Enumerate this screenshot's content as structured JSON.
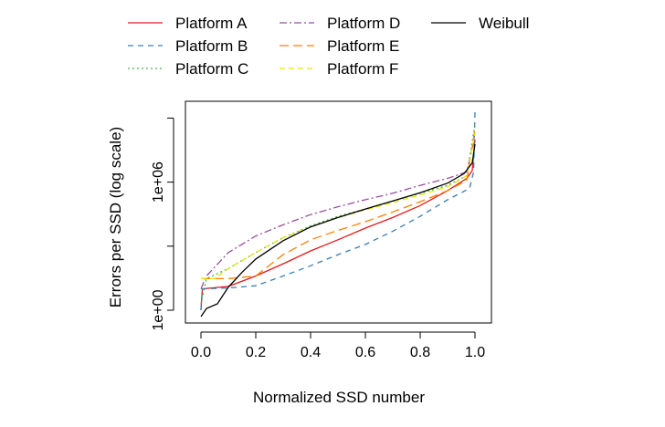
{
  "chart_data": {
    "type": "line",
    "title": "",
    "xlabel": "Normalized SSD number",
    "ylabel": "Errors per SSD (log scale)",
    "x_scale": "linear",
    "y_scale": "log10",
    "xlim": [
      0,
      1
    ],
    "ylim": [
      1,
      1000000000.0
    ],
    "xticks": [
      0.0,
      0.2,
      0.4,
      0.6,
      0.8,
      1.0
    ],
    "xtick_labels": [
      "0.0",
      "0.2",
      "0.4",
      "0.6",
      "0.8",
      "1.0"
    ],
    "yticks": [
      1,
      1000,
      1000000,
      1000000000
    ],
    "ytick_labels": [
      "1e+00",
      "",
      "1e+06",
      ""
    ],
    "grid": false,
    "legend_position": "top",
    "series": [
      {
        "name": "Platform A",
        "color": "#e41a1c",
        "dash": "solid",
        "points": [
          [
            0.0,
            1
          ],
          [
            0.005,
            10
          ],
          [
            0.1,
            13
          ],
          [
            0.2,
            40
          ],
          [
            0.3,
            150
          ],
          [
            0.4,
            600
          ],
          [
            0.5,
            2000
          ],
          [
            0.6,
            7000
          ],
          [
            0.7,
            22000
          ],
          [
            0.8,
            80000
          ],
          [
            0.9,
            400000
          ],
          [
            0.97,
            1500000
          ],
          [
            0.99,
            3500000
          ],
          [
            1.0,
            100000000.0
          ]
        ]
      },
      {
        "name": "Platform B",
        "color": "#377eb8",
        "dash": "6,5",
        "points": [
          [
            0.0,
            1
          ],
          [
            0.005,
            10
          ],
          [
            0.1,
            11
          ],
          [
            0.2,
            14
          ],
          [
            0.3,
            40
          ],
          [
            0.4,
            120
          ],
          [
            0.5,
            400
          ],
          [
            0.6,
            1200
          ],
          [
            0.7,
            5000
          ],
          [
            0.8,
            25000
          ],
          [
            0.9,
            150000
          ],
          [
            0.98,
            500000
          ],
          [
            0.995,
            3000000
          ],
          [
            1.0,
            2000000000.0
          ]
        ]
      },
      {
        "name": "Platform C",
        "color": "#4daf4a",
        "dash": "2,3",
        "points": [
          [
            0.0,
            2
          ],
          [
            0.02,
            30
          ],
          [
            0.1,
            90
          ],
          [
            0.2,
            500
          ],
          [
            0.3,
            2500
          ],
          [
            0.4,
            9000
          ],
          [
            0.5,
            25000
          ],
          [
            0.6,
            55000
          ],
          [
            0.7,
            130000
          ],
          [
            0.8,
            300000
          ],
          [
            0.9,
            700000
          ],
          [
            0.97,
            2000000
          ],
          [
            1.0,
            500000000.0
          ]
        ]
      },
      {
        "name": "Platform D",
        "color": "#984ea3",
        "dash": "8,3,2,3",
        "points": [
          [
            0.0,
            10
          ],
          [
            0.02,
            40
          ],
          [
            0.1,
            500
          ],
          [
            0.2,
            3000
          ],
          [
            0.3,
            10000
          ],
          [
            0.4,
            30000
          ],
          [
            0.5,
            70000
          ],
          [
            0.6,
            150000
          ],
          [
            0.7,
            300000
          ],
          [
            0.8,
            700000
          ],
          [
            0.9,
            1500000
          ],
          [
            0.97,
            3000000
          ],
          [
            1.0,
            150000000.0
          ]
        ]
      },
      {
        "name": "Platform E",
        "color": "#ff7f00",
        "dash": "10,5",
        "points": [
          [
            0.0,
            30
          ],
          [
            0.1,
            30
          ],
          [
            0.2,
            40
          ],
          [
            0.3,
            400
          ],
          [
            0.4,
            2000
          ],
          [
            0.5,
            5500
          ],
          [
            0.6,
            14000
          ],
          [
            0.7,
            40000
          ],
          [
            0.8,
            120000
          ],
          [
            0.9,
            400000
          ],
          [
            0.97,
            1200000
          ],
          [
            1.0,
            300000000.0
          ]
        ]
      },
      {
        "name": "Platform F",
        "color": "#e6e600",
        "dash": "6,4",
        "points": [
          [
            0.0,
            30
          ],
          [
            0.05,
            30
          ],
          [
            0.1,
            90
          ],
          [
            0.2,
            500
          ],
          [
            0.3,
            2500
          ],
          [
            0.4,
            8000
          ],
          [
            0.5,
            22000
          ],
          [
            0.6,
            50000
          ],
          [
            0.7,
            110000
          ],
          [
            0.8,
            250000
          ],
          [
            0.9,
            600000
          ],
          [
            0.97,
            2000000
          ],
          [
            1.0,
            200000000.0
          ]
        ]
      },
      {
        "name": "Weibull",
        "color": "#000000",
        "dash": "solid",
        "points": [
          [
            0.0,
            0.5
          ],
          [
            0.02,
            1.2
          ],
          [
            0.06,
            2
          ],
          [
            0.1,
            12
          ],
          [
            0.15,
            60
          ],
          [
            0.2,
            250
          ],
          [
            0.3,
            1800
          ],
          [
            0.4,
            8000
          ],
          [
            0.5,
            22000
          ],
          [
            0.6,
            55000
          ],
          [
            0.7,
            130000
          ],
          [
            0.8,
            320000
          ],
          [
            0.9,
            900000
          ],
          [
            0.96,
            2500000
          ],
          [
            0.99,
            8000000
          ],
          [
            1.0,
            60000000.0
          ]
        ]
      }
    ]
  }
}
